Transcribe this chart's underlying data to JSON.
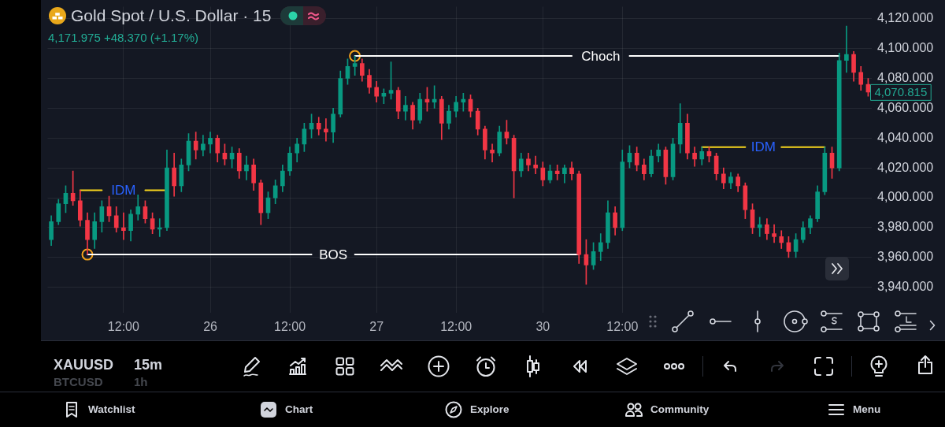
{
  "chart_data": {
    "type": "candlestick",
    "title": "Gold Spot / U.S. Dollar · 15",
    "subtitle": "4,171.975 +48.370 (+1.17%)",
    "categories": [
      null,
      null,
      null,
      null,
      null,
      null,
      null,
      null,
      null,
      null,
      "12:00",
      null,
      null,
      null,
      null,
      null,
      null,
      null,
      null,
      null,
      null,
      null,
      "26",
      null,
      null,
      null,
      null,
      null,
      null,
      null,
      null,
      null,
      null,
      "12:00",
      null,
      null,
      null,
      null,
      null,
      null,
      null,
      null,
      null,
      null,
      null,
      "27",
      null,
      null,
      null,
      null,
      null,
      null,
      null,
      null,
      null,
      null,
      "12:00",
      null,
      null,
      null,
      null,
      null,
      null,
      null,
      null,
      null,
      null,
      null,
      "30",
      null,
      null,
      null,
      null,
      null,
      null,
      null,
      null,
      null,
      null,
      "12:00",
      null,
      null,
      null,
      null,
      null,
      null,
      null,
      null,
      null,
      null,
      null,
      null,
      null,
      null,
      null,
      null,
      null,
      null,
      null,
      null,
      null,
      null,
      null,
      null,
      null,
      null,
      null,
      null,
      null,
      null,
      null,
      null,
      null,
      null
    ],
    "ohlc": [
      [
        3972,
        3988,
        3968,
        3984
      ],
      [
        3984,
        3999,
        3982,
        3996
      ],
      [
        3996,
        4008,
        3990,
        4003
      ],
      [
        4003,
        4018,
        3995,
        3998
      ],
      [
        3998,
        4005,
        3981,
        3985
      ],
      [
        3985,
        3990,
        3962,
        3972
      ],
      [
        3972,
        3990,
        3966,
        3984
      ],
      [
        3984,
        3998,
        3977,
        3994
      ],
      [
        3994,
        4001,
        3984,
        3988
      ],
      [
        3988,
        3994,
        3977,
        3980
      ],
      [
        3980,
        3990,
        3972,
        3978
      ],
      [
        3978,
        3992,
        3971,
        3989
      ],
      [
        3989,
        4002,
        3985,
        3994
      ],
      [
        3994,
        3998,
        3983,
        3986
      ],
      [
        3986,
        3990,
        3976,
        3979
      ],
      [
        3979,
        3986,
        3974,
        3980
      ],
      [
        3980,
        4032,
        3978,
        4020
      ],
      [
        4020,
        4030,
        4001,
        4008
      ],
      [
        4008,
        4026,
        4004,
        4022
      ],
      [
        4022,
        4043,
        4018,
        4038
      ],
      [
        4038,
        4044,
        4026,
        4032
      ],
      [
        4032,
        4042,
        4028,
        4036
      ],
      [
        4036,
        4044,
        4030,
        4040
      ],
      [
        4040,
        4042,
        4024,
        4030
      ],
      [
        4030,
        4036,
        4022,
        4026
      ],
      [
        4026,
        4034,
        4020,
        4030
      ],
      [
        4030,
        4033,
        4013,
        4018
      ],
      [
        4018,
        4028,
        4012,
        4022
      ],
      [
        4022,
        4026,
        4005,
        4010
      ],
      [
        4010,
        4012,
        3982,
        3990
      ],
      [
        3990,
        4004,
        3986,
        4000
      ],
      [
        4000,
        4012,
        3996,
        4008
      ],
      [
        4008,
        4022,
        4004,
        4018
      ],
      [
        4018,
        4034,
        4015,
        4030
      ],
      [
        4030,
        4040,
        4024,
        4036
      ],
      [
        4036,
        4050,
        4031,
        4046
      ],
      [
        4046,
        4056,
        4040,
        4050
      ],
      [
        4050,
        4054,
        4042,
        4046
      ],
      [
        4046,
        4053,
        4038,
        4044
      ],
      [
        4044,
        4060,
        4037,
        4056
      ],
      [
        4056,
        4085,
        4054,
        4080
      ],
      [
        4080,
        4093,
        4076,
        4088
      ],
      [
        4088,
        4095,
        4082,
        4090
      ],
      [
        4090,
        4093,
        4078,
        4082
      ],
      [
        4082,
        4086,
        4070,
        4074
      ],
      [
        4074,
        4078,
        4064,
        4068
      ],
      [
        4068,
        4073,
        4063,
        4070
      ],
      [
        4070,
        4091,
        4066,
        4072
      ],
      [
        4072,
        4074,
        4053,
        4058
      ],
      [
        4058,
        4068,
        4052,
        4062
      ],
      [
        4062,
        4064,
        4046,
        4052
      ],
      [
        4052,
        4070,
        4050,
        4066
      ],
      [
        4066,
        4074,
        4058,
        4064
      ],
      [
        4064,
        4075,
        4060,
        4066
      ],
      [
        4066,
        4068,
        4039,
        4050
      ],
      [
        4050,
        4062,
        4046,
        4058
      ],
      [
        4058,
        4068,
        4054,
        4064
      ],
      [
        4064,
        4070,
        4058,
        4066
      ],
      [
        4066,
        4069,
        4054,
        4058
      ],
      [
        4058,
        4060,
        4042,
        4046
      ],
      [
        4046,
        4048,
        4026,
        4032
      ],
      [
        4032,
        4036,
        4024,
        4030
      ],
      [
        4030,
        4048,
        4028,
        4044
      ],
      [
        4044,
        4052,
        4036,
        4040
      ],
      [
        4040,
        4042,
        4000,
        4018
      ],
      [
        4018,
        4030,
        4014,
        4026
      ],
      [
        4026,
        4030,
        4018,
        4022
      ],
      [
        4022,
        4028,
        4016,
        4020
      ],
      [
        4020,
        4024,
        4008,
        4012
      ],
      [
        4012,
        4022,
        4010,
        4018
      ],
      [
        4018,
        4022,
        4012,
        4016
      ],
      [
        4016,
        4022,
        4010,
        4020
      ],
      [
        4020,
        4024,
        4012,
        4016
      ],
      [
        4016,
        4018,
        3956,
        3962
      ],
      [
        3962,
        3972,
        3942,
        3955
      ],
      [
        3955,
        3970,
        3952,
        3964
      ],
      [
        3964,
        3976,
        3958,
        3970
      ],
      [
        3970,
        3998,
        3966,
        3990
      ],
      [
        3990,
        3994,
        3975,
        3980
      ],
      [
        3980,
        4032,
        3978,
        4024
      ],
      [
        4024,
        4035,
        4020,
        4030
      ],
      [
        4030,
        4034,
        4018,
        4022
      ],
      [
        4022,
        4026,
        4012,
        4016
      ],
      [
        4016,
        4032,
        4014,
        4028
      ],
      [
        4028,
        4036,
        4024,
        4032
      ],
      [
        4032,
        4034,
        4009,
        4014
      ],
      [
        4014,
        4040,
        4012,
        4036
      ],
      [
        4036,
        4063,
        4030,
        4050
      ],
      [
        4050,
        4056,
        4026,
        4030
      ],
      [
        4030,
        4034,
        4021,
        4026
      ],
      [
        4026,
        4034,
        4022,
        4031
      ],
      [
        4031,
        4034,
        4024,
        4028
      ],
      [
        4028,
        4030,
        4012,
        4016
      ],
      [
        4016,
        4020,
        4006,
        4010
      ],
      [
        4010,
        4017,
        4006,
        4014
      ],
      [
        4014,
        4016,
        4004,
        4008
      ],
      [
        4008,
        4010,
        3986,
        3992
      ],
      [
        3992,
        3996,
        3976,
        3980
      ],
      [
        3980,
        3987,
        3974,
        3982
      ],
      [
        3982,
        3986,
        3972,
        3976
      ],
      [
        3976,
        3982,
        3970,
        3974
      ],
      [
        3974,
        3978,
        3966,
        3970
      ],
      [
        3970,
        3974,
        3960,
        3964
      ],
      [
        3964,
        3976,
        3960,
        3972
      ],
      [
        3972,
        3984,
        3970,
        3980
      ],
      [
        3980,
        3988,
        3976,
        3986
      ],
      [
        3986,
        4008,
        3984,
        4004
      ],
      [
        4004,
        4034,
        4002,
        4030
      ],
      [
        4030,
        4034,
        4013,
        4020
      ],
      [
        4020,
        4097,
        4018,
        4092
      ],
      [
        4092,
        4115,
        4084,
        4096
      ],
      [
        4096,
        4098,
        4078,
        4084
      ],
      [
        4084,
        4088,
        4072,
        4076
      ],
      [
        4076,
        4080,
        4068,
        4070.815
      ]
    ],
    "series": [
      {
        "type": "line",
        "name": "BOS",
        "color": "#ffffff",
        "values": [
          null,
          null,
          null,
          null,
          null,
          3962,
          3962,
          3962,
          3962,
          3962,
          3962,
          3962,
          3962,
          3962,
          3962,
          3962,
          3962,
          3962,
          3962,
          3962,
          3962,
          3962,
          3962,
          3962,
          3962,
          3962,
          3962,
          3962,
          3962,
          3962,
          3962,
          3962,
          3962,
          3962,
          3962,
          3962,
          3962,
          null,
          null,
          null,
          null,
          null,
          3962,
          3962,
          3962,
          3962,
          3962,
          3962,
          3962,
          3962,
          3962,
          3962,
          3962,
          3962,
          3962,
          3962,
          3962,
          3962,
          3962,
          3962,
          3962,
          3962,
          3962,
          3962,
          3962,
          3962,
          3962,
          3962,
          3962,
          3962,
          3962,
          3962,
          3962,
          3962,
          null,
          null,
          null,
          null,
          null,
          null,
          null,
          null,
          null,
          null,
          null,
          null,
          null,
          null,
          null,
          null,
          null,
          null,
          null,
          null,
          null,
          null,
          null,
          null,
          null,
          null,
          null,
          null,
          null,
          null,
          null,
          null,
          null,
          null,
          null,
          null,
          null,
          null,
          null,
          null
        ]
      },
      {
        "type": "line",
        "name": "Choch",
        "color": "#ffffff",
        "values": [
          null,
          null,
          null,
          null,
          null,
          null,
          null,
          null,
          null,
          null,
          null,
          null,
          null,
          null,
          null,
          null,
          null,
          null,
          null,
          null,
          null,
          null,
          null,
          null,
          null,
          null,
          null,
          null,
          null,
          null,
          null,
          null,
          null,
          null,
          null,
          null,
          null,
          null,
          null,
          null,
          null,
          null,
          4095,
          4095,
          4095,
          4095,
          4095,
          4095,
          4095,
          4095,
          4095,
          4095,
          4095,
          4095,
          4095,
          4095,
          4095,
          4095,
          4095,
          4095,
          4095,
          4095,
          4095,
          4095,
          4095,
          4095,
          4095,
          4095,
          4095,
          4095,
          4095,
          4095,
          4095,
          null,
          null,
          null,
          null,
          null,
          null,
          null,
          4095,
          4095,
          4095,
          4095,
          4095,
          4095,
          4095,
          4095,
          4095,
          4095,
          4095,
          4095,
          4095,
          4095,
          4095,
          4095,
          4095,
          4095,
          4095,
          4095,
          4095,
          4095,
          4095,
          4095,
          4095,
          4095,
          4095,
          4095,
          4095,
          4095,
          null,
          null,
          null,
          null
        ]
      },
      {
        "type": "line",
        "name": "IDM",
        "color": "#f7d51d",
        "values": [
          null,
          null,
          null,
          null,
          4005,
          4005,
          4005,
          4005,
          null,
          null,
          null,
          null,
          null,
          4005,
          4005,
          4005,
          4005,
          null,
          null,
          null,
          null,
          null,
          null,
          null,
          null,
          null,
          null,
          null,
          null,
          null,
          null,
          null,
          null,
          null,
          null,
          null,
          null,
          null,
          null,
          null,
          null,
          null,
          null,
          null,
          null,
          null,
          null,
          null,
          null,
          null,
          null,
          null,
          null,
          null,
          null,
          null,
          null,
          null,
          null,
          null,
          null,
          null,
          null,
          null,
          null,
          null,
          null,
          null,
          null,
          null,
          null,
          null,
          null,
          null,
          null,
          null,
          null,
          null,
          null,
          null,
          null,
          null,
          null,
          null,
          null,
          null,
          null,
          null,
          null,
          null,
          null,
          null,
          null,
          null,
          null,
          null,
          null,
          null,
          null,
          null,
          null,
          null,
          null,
          null,
          null,
          null,
          null,
          null,
          null,
          null,
          null,
          null,
          null,
          null
        ]
      },
      {
        "type": "line",
        "name": "IDM",
        "color": "#f7d51d",
        "values": [
          null,
          null,
          null,
          null,
          null,
          null,
          null,
          null,
          null,
          null,
          null,
          null,
          null,
          null,
          null,
          null,
          null,
          null,
          null,
          null,
          null,
          null,
          null,
          null,
          null,
          null,
          null,
          null,
          null,
          null,
          null,
          null,
          null,
          null,
          null,
          null,
          null,
          null,
          null,
          null,
          null,
          null,
          null,
          null,
          null,
          null,
          null,
          null,
          null,
          null,
          null,
          null,
          null,
          null,
          null,
          null,
          null,
          null,
          null,
          null,
          null,
          null,
          null,
          null,
          null,
          null,
          null,
          null,
          null,
          null,
          null,
          null,
          null,
          null,
          null,
          null,
          null,
          null,
          null,
          null,
          null,
          null,
          null,
          null,
          null,
          null,
          null,
          null,
          null,
          null,
          4034,
          4034,
          4034,
          4034,
          4034,
          4034,
          4034,
          null,
          null,
          null,
          null,
          4034,
          4034,
          4034,
          4034,
          4034,
          4034,
          4034,
          null,
          null,
          null,
          null,
          null,
          null
        ]
      },
      {
        "type": "scatter",
        "color": "#f5a31a",
        "marker": "circle",
        "values": [
          null,
          null,
          null,
          null,
          null,
          3962,
          null,
          null,
          null,
          null,
          null,
          null,
          null,
          null,
          null,
          null,
          null,
          null,
          null,
          null,
          null,
          null,
          null,
          null,
          null,
          null,
          null,
          null,
          null,
          null,
          null,
          null,
          null,
          null,
          null,
          null,
          null,
          null,
          null,
          null,
          null,
          null,
          4095,
          null,
          null,
          null,
          null,
          null,
          null,
          null,
          null,
          null,
          null,
          null,
          null,
          null,
          null,
          null,
          null,
          null,
          null,
          null,
          null,
          null,
          null,
          null,
          null,
          null,
          null,
          null,
          null,
          null,
          null,
          null,
          null,
          null,
          null,
          null,
          null,
          null,
          null,
          null,
          null,
          null,
          null,
          null,
          null,
          null,
          null,
          null,
          null,
          null,
          null,
          null,
          null,
          null,
          null,
          null,
          null,
          null,
          null,
          null,
          null,
          null,
          null,
          null,
          null,
          null,
          null,
          null,
          null,
          null,
          null,
          null
        ]
      }
    ],
    "ylim": [
      3923,
      4128
    ],
    "yticks": [
      {
        "value": 3940,
        "label": "3,940.000"
      },
      {
        "value": 3960,
        "label": "3,960.000"
      },
      {
        "value": 3980,
        "label": "3,980.000"
      },
      {
        "value": 4000,
        "label": "4,000.000"
      },
      {
        "value": 4020,
        "label": "4,020.000"
      },
      {
        "value": 4040,
        "label": "4,040.000"
      },
      {
        "value": 4060,
        "label": "4,060.000"
      },
      {
        "value": 4080,
        "label": "4,080.000"
      },
      {
        "value": 4100,
        "label": "4,100.000"
      },
      {
        "value": 4120,
        "label": "4,120.000"
      }
    ],
    "grid": true,
    "annotations": [
      "4,070.815",
      "XAUUSD",
      "15m",
      "BTCUSD",
      "1h",
      "Watchlist",
      "Chart",
      "Explore",
      "Community",
      "Menu"
    ]
  }
}
